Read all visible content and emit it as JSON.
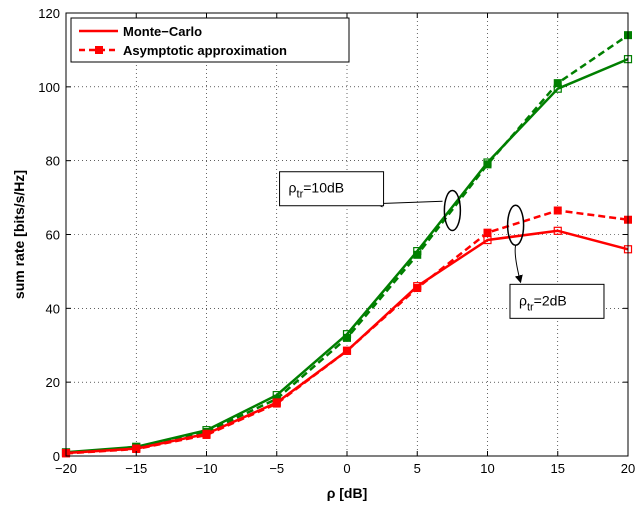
{
  "chart_data": {
    "type": "line",
    "xlabel": "ρ [dB]",
    "ylabel": "sum rate [bits/s/Hz]",
    "xlim": [
      -20,
      20
    ],
    "ylim": [
      0,
      120
    ],
    "x_ticks": [
      -20,
      -15,
      -10,
      -5,
      0,
      5,
      10,
      15,
      20
    ],
    "y_ticks": [
      0,
      20,
      40,
      60,
      80,
      100,
      120
    ],
    "grid": true,
    "legend": {
      "placement": "top-left",
      "entries": [
        {
          "label": "Monte−Carlo",
          "style": "solid"
        },
        {
          "label": "Asymptotic approximation",
          "style": "dashed-square"
        }
      ]
    },
    "series": [
      {
        "group": "rho_tr_10dB",
        "kind": "monte-carlo",
        "color": "#007f00",
        "x": [
          -20,
          -15,
          -10,
          -5,
          0,
          5,
          10,
          15,
          20
        ],
        "y": [
          1.0,
          2.5,
          7.0,
          16.5,
          33.0,
          55.5,
          79.5,
          99.5,
          107.5
        ]
      },
      {
        "group": "rho_tr_10dB",
        "kind": "asymptotic",
        "color": "#007f00",
        "x": [
          -20,
          -15,
          -10,
          -5,
          0,
          5,
          10,
          15,
          20
        ],
        "y": [
          0.8,
          2.3,
          6.5,
          15.5,
          32.0,
          54.5,
          79.0,
          101.0,
          114.0
        ]
      },
      {
        "group": "rho_tr_2dB",
        "kind": "monte-carlo",
        "color": "#ff0000",
        "x": [
          -20,
          -15,
          -10,
          -5,
          0,
          5,
          10,
          15,
          20
        ],
        "y": [
          0.8,
          2.0,
          6.0,
          14.5,
          28.5,
          46.0,
          58.5,
          61.0,
          56.0
        ]
      },
      {
        "group": "rho_tr_2dB",
        "kind": "asymptotic",
        "color": "#ff0000",
        "x": [
          -20,
          -15,
          -10,
          -5,
          0,
          5,
          10,
          15,
          20
        ],
        "y": [
          0.7,
          1.9,
          5.7,
          14.2,
          28.5,
          45.5,
          60.5,
          66.5,
          64.0
        ]
      }
    ],
    "annotations": [
      {
        "base": "ρ",
        "sub": "tr",
        "rest": "=10dB",
        "box_at": [
          -4.8,
          77
        ],
        "ellipse_at": [
          7.5,
          66.5
        ],
        "arrow_to": [
          6.8,
          69
        ]
      },
      {
        "base": "ρ",
        "sub": "tr",
        "rest": "=2dB",
        "box_at": [
          11.6,
          46.5
        ],
        "ellipse_at": [
          12.0,
          62.5
        ],
        "arrow_to": [
          12.0,
          51.5
        ]
      }
    ]
  }
}
